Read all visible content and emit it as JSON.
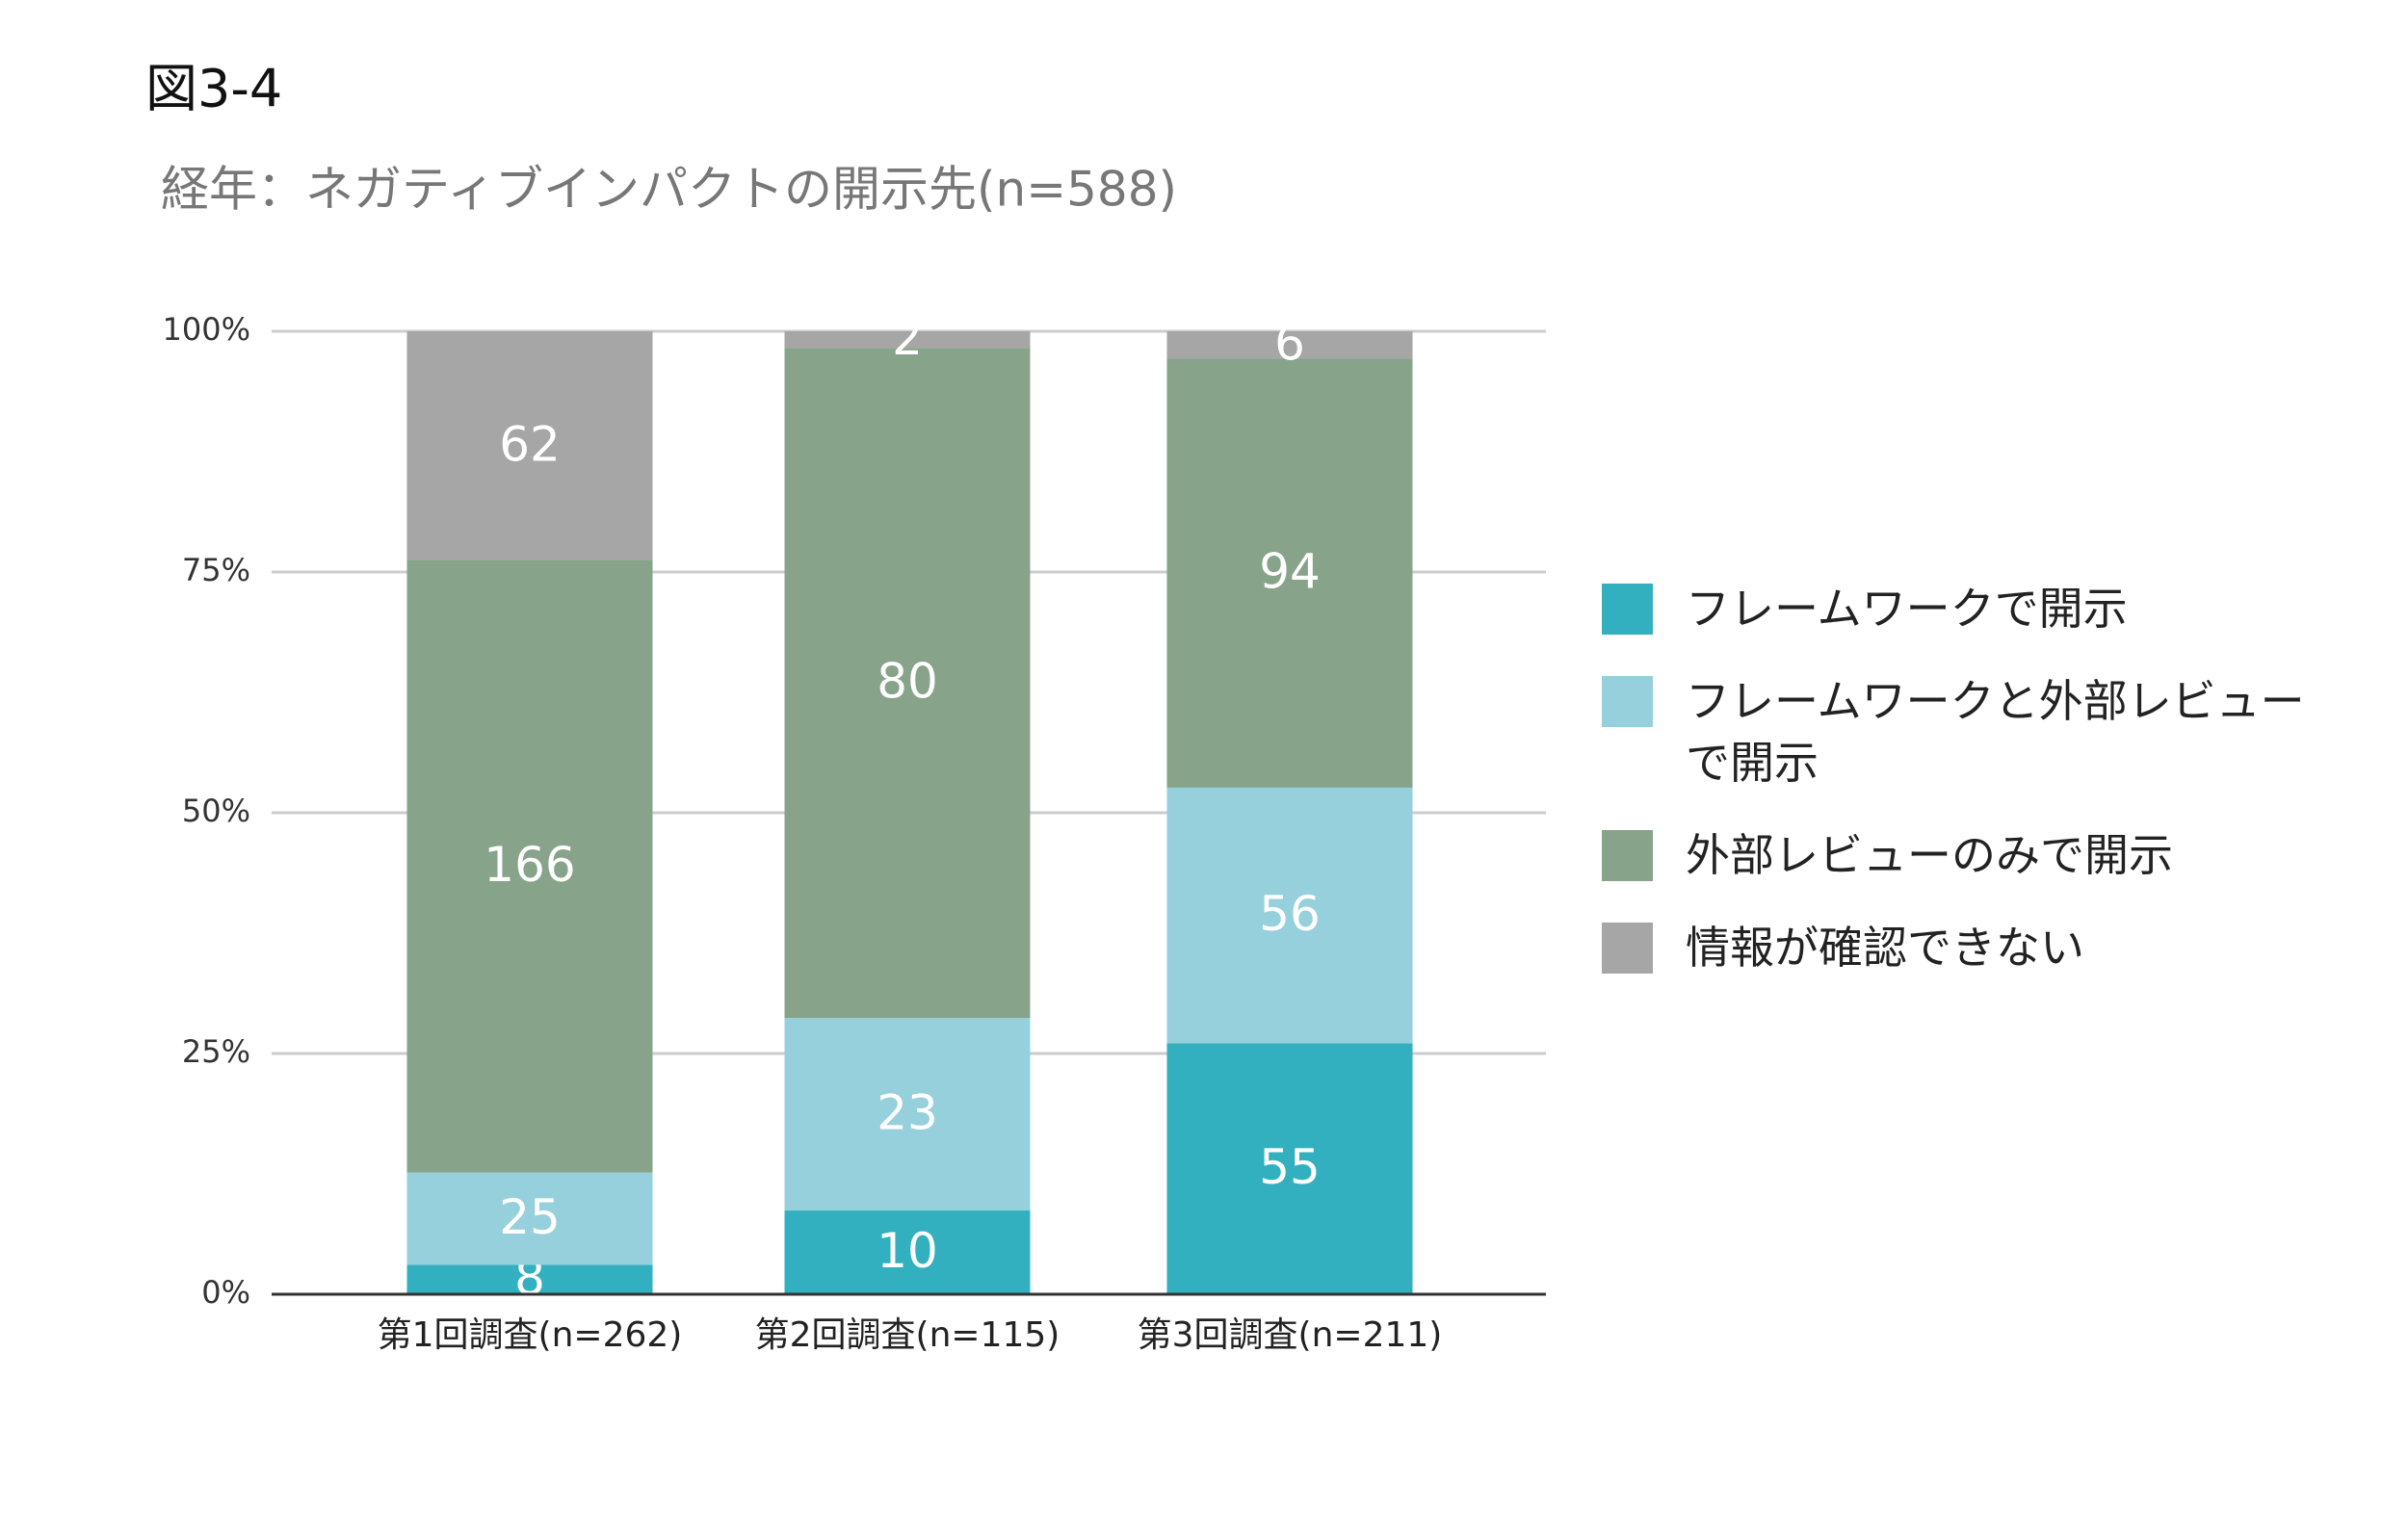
{
  "chart_data": {
    "type": "bar",
    "stack": "percent",
    "label": "図3-4",
    "title": "経年：ネガティブインパクトの開示先(n=588)",
    "categories": [
      "第1回調査(n=262)",
      "第2回調査(n=115)",
      "第3回調査(n=211)"
    ],
    "series": [
      {
        "name": "フレームワークで開示",
        "color": "#33b0bf",
        "values": [
          8,
          10,
          55
        ]
      },
      {
        "name": "フレームワークと外部レビューで開示",
        "color": "#96d0dc",
        "values": [
          25,
          23,
          56
        ]
      },
      {
        "name": "外部レビューのみで開示",
        "color": "#87a38a",
        "values": [
          166,
          80,
          94
        ]
      },
      {
        "name": "情報が確認できない",
        "color": "#a6a6a6",
        "values": [
          62,
          2,
          6
        ]
      }
    ],
    "ylim": [
      0,
      100
    ],
    "yticks": [
      {
        "value": 0,
        "label": "0%"
      },
      {
        "value": 25,
        "label": "25%"
      },
      {
        "value": 50,
        "label": "50%"
      },
      {
        "value": 75,
        "label": "75%"
      },
      {
        "value": 100,
        "label": "100%"
      }
    ],
    "grid": true,
    "legend": "right"
  }
}
